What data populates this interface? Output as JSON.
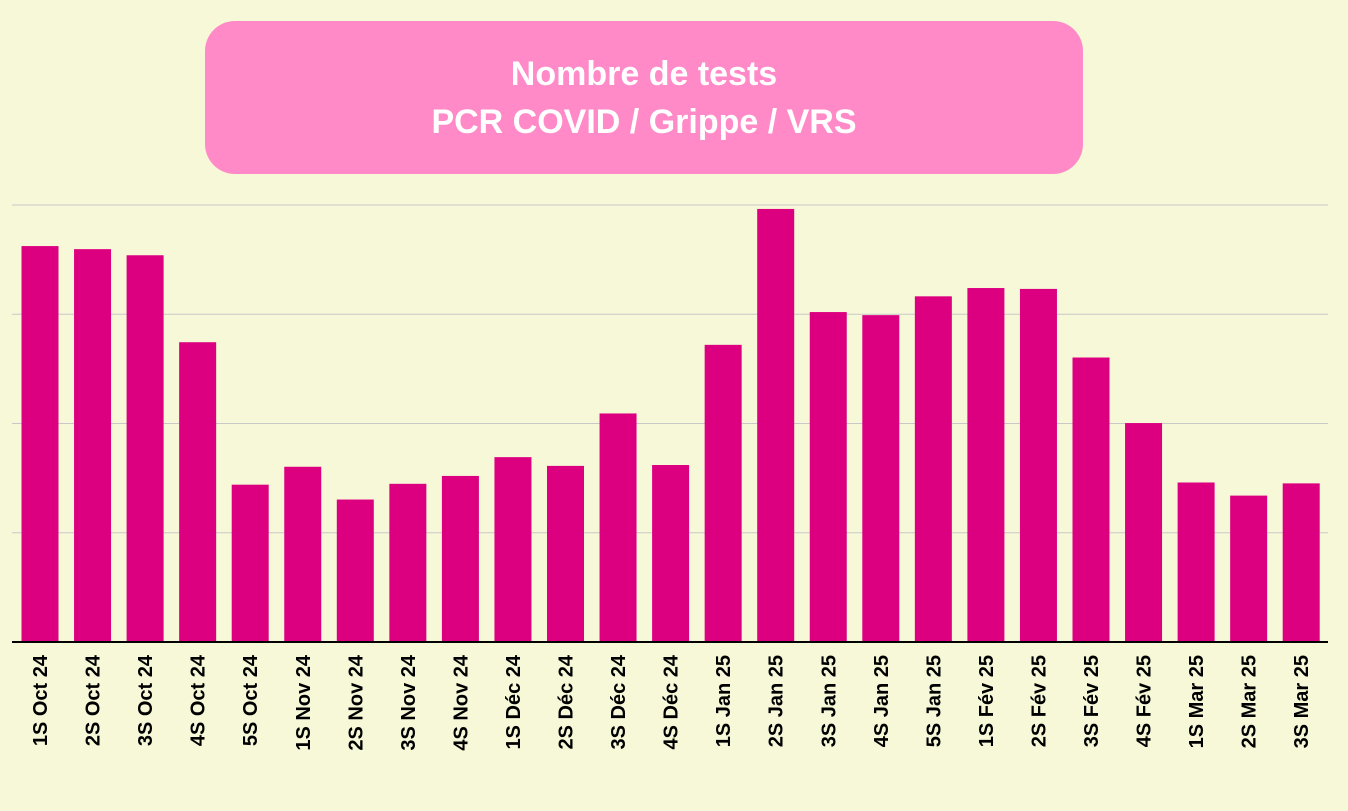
{
  "chart_data": {
    "type": "bar",
    "title_lines": [
      "Nombre de tests",
      "PCR COVID / Grippe / VRS"
    ],
    "xlabel": "",
    "ylabel": "",
    "ylim": [
      0,
      100
    ],
    "grid": true,
    "bar_color": "#dc0080",
    "title_box_color": "#ff8ac7",
    "background_color": "#f7f8d8",
    "categories": [
      "1S Oct 24",
      "2S Oct 24",
      "3S Oct 24",
      "4S Oct 24",
      "5S Oct 24",
      "1S Nov 24",
      "2S Nov 24",
      "3S Nov 24",
      "4S Nov 24",
      "1S Déc 24",
      "2S Déc 24",
      "3S Déc 24",
      "4S Déc 24",
      "1S Jan 25",
      "2S Jan 25",
      "3S Jan 25",
      "4S Jan 25",
      "5S Jan 25",
      "1S Fév 25",
      "2S Fév 25",
      "3S Fév 25",
      "4S Fév 25",
      "1S Mar 25",
      "2S Mar 25",
      "3S Mar 25"
    ],
    "values": [
      90.6,
      89.9,
      88.5,
      68.6,
      36.0,
      40.1,
      32.6,
      36.2,
      38.0,
      42.3,
      40.3,
      52.3,
      40.5,
      68.0,
      99.1,
      75.5,
      74.8,
      79.1,
      81.0,
      80.8,
      65.1,
      50.1,
      36.5,
      33.5,
      36.3
    ]
  }
}
